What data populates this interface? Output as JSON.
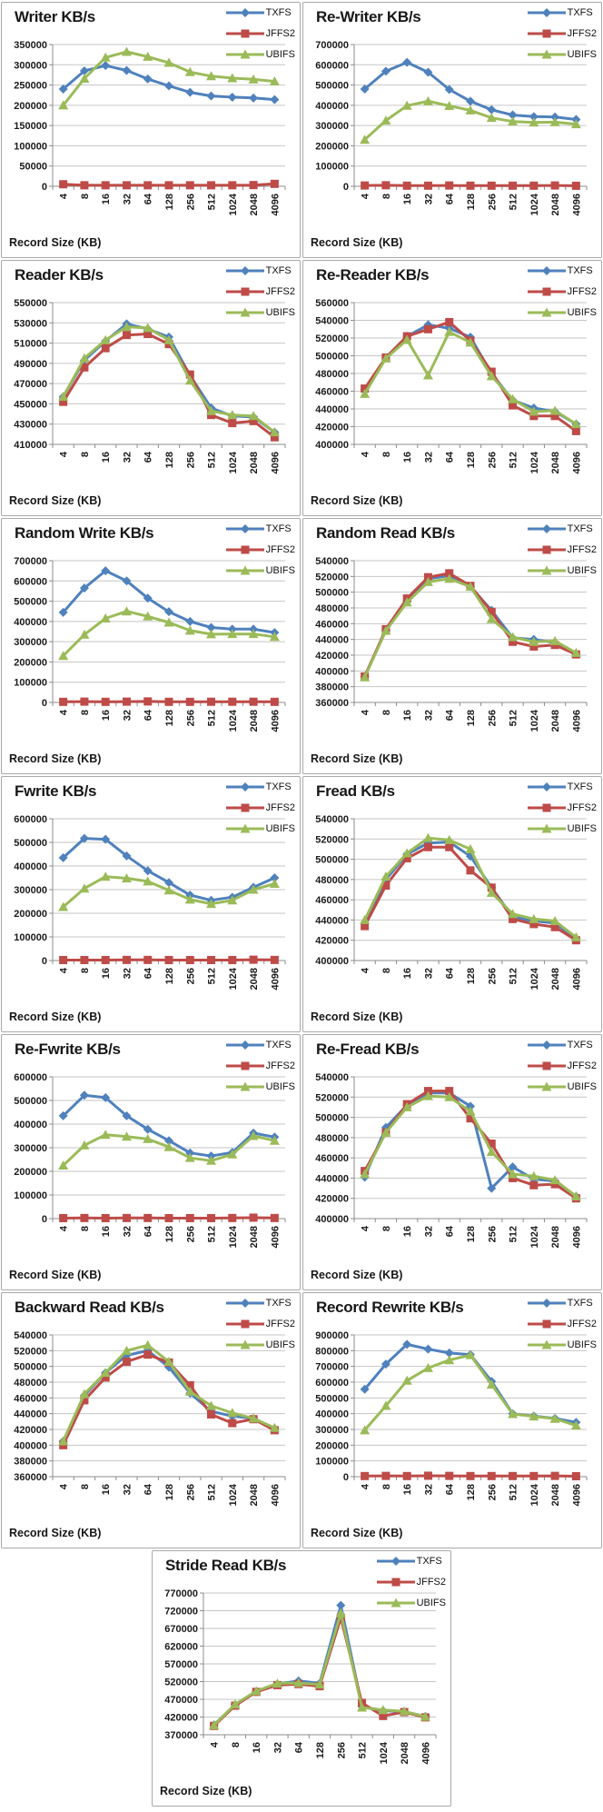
{
  "page": {
    "x_axis_label": "Record Size (KB)"
  },
  "series_style": [
    {
      "name": "TXFS",
      "color": "#4F81BD",
      "marker": "diamond"
    },
    {
      "name": "JFFS2",
      "color": "#BE4B48",
      "marker": "square"
    },
    {
      "name": "UBIFS",
      "color": "#9BBB59",
      "marker": "triangle"
    }
  ],
  "chart_data": [
    {
      "type": "line",
      "title": "Writer KB/s",
      "xlabel": "Record Size (KB)",
      "categories": [
        4,
        8,
        16,
        32,
        64,
        128,
        256,
        512,
        1024,
        2048,
        4096
      ],
      "ylim": [
        0,
        350000
      ],
      "ystep": 50000,
      "grid": true,
      "legend_position": "top-right",
      "series": [
        {
          "name": "TXFS",
          "values": [
            240000,
            285000,
            298000,
            286000,
            265000,
            248000,
            232000,
            223000,
            220000,
            218000,
            214000
          ]
        },
        {
          "name": "JFFS2",
          "values": [
            5000,
            2500,
            2500,
            2500,
            2500,
            2500,
            2500,
            2500,
            2500,
            3000,
            6000
          ]
        },
        {
          "name": "UBIFS",
          "values": [
            200000,
            266000,
            318000,
            332000,
            320000,
            305000,
            282000,
            272000,
            267000,
            264000,
            259000
          ]
        }
      ]
    },
    {
      "type": "line",
      "title": "Re-Writer KB/s",
      "xlabel": "Record Size (KB)",
      "categories": [
        4,
        8,
        16,
        32,
        64,
        128,
        256,
        512,
        1024,
        2048,
        4096
      ],
      "ylim": [
        0,
        700000
      ],
      "ystep": 100000,
      "grid": true,
      "legend_position": "top-right",
      "series": [
        {
          "name": "TXFS",
          "values": [
            480000,
            568000,
            612000,
            563000,
            478000,
            420000,
            378000,
            352000,
            344000,
            342000,
            330000
          ]
        },
        {
          "name": "JFFS2",
          "values": [
            4000,
            5000,
            3000,
            3000,
            4000,
            3000,
            3000,
            3000,
            3000,
            4000,
            2500
          ]
        },
        {
          "name": "UBIFS",
          "values": [
            230000,
            325000,
            398000,
            420000,
            397000,
            375000,
            338000,
            320000,
            315000,
            317000,
            307000
          ]
        }
      ]
    },
    {
      "type": "line",
      "title": "Reader KB/s",
      "xlabel": "Record Size (KB)",
      "categories": [
        4,
        8,
        16,
        32,
        64,
        128,
        256,
        512,
        1024,
        2048,
        4096
      ],
      "ylim": [
        410000,
        550000
      ],
      "ystep": 20000,
      "grid": true,
      "legend_position": "top-right",
      "series": [
        {
          "name": "TXFS",
          "values": [
            457000,
            493000,
            512000,
            529000,
            524000,
            516000,
            478000,
            446000,
            438000,
            437000,
            422000
          ]
        },
        {
          "name": "JFFS2",
          "values": [
            452000,
            486000,
            505000,
            518000,
            519000,
            509000,
            479000,
            439000,
            431000,
            433000,
            417000
          ]
        },
        {
          "name": "UBIFS",
          "values": [
            457000,
            495000,
            513000,
            526000,
            525000,
            513000,
            473000,
            443000,
            439000,
            438000,
            422000
          ]
        }
      ]
    },
    {
      "type": "line",
      "title": "Re-Reader KB/s",
      "xlabel": "Record Size (KB)",
      "categories": [
        4,
        8,
        16,
        32,
        64,
        128,
        256,
        512,
        1024,
        2048,
        4096
      ],
      "ylim": [
        400000,
        560000
      ],
      "ystep": 20000,
      "grid": true,
      "legend_position": "top-right",
      "series": [
        {
          "name": "TXFS",
          "values": [
            462000,
            498000,
            522000,
            535000,
            531000,
            521000,
            480000,
            450000,
            441000,
            437000,
            423000
          ]
        },
        {
          "name": "JFFS2",
          "values": [
            463000,
            498000,
            522000,
            530000,
            538000,
            517000,
            482000,
            444000,
            432000,
            432000,
            415000
          ]
        },
        {
          "name": "UBIFS",
          "values": [
            457000,
            497000,
            518000,
            478000,
            527000,
            515000,
            477000,
            451000,
            437000,
            438000,
            423000
          ]
        }
      ]
    },
    {
      "type": "line",
      "title": "Random Write KB/s",
      "xlabel": "Record Size (KB)",
      "categories": [
        4,
        8,
        16,
        32,
        64,
        128,
        256,
        512,
        1024,
        2048,
        4096
      ],
      "ylim": [
        0,
        700000
      ],
      "ystep": 100000,
      "grid": true,
      "legend_position": "top-right",
      "series": [
        {
          "name": "TXFS",
          "values": [
            445000,
            565000,
            650000,
            600000,
            515000,
            448000,
            400000,
            370000,
            362000,
            362000,
            345000
          ]
        },
        {
          "name": "JFFS2",
          "values": [
            3000,
            4000,
            3000,
            4000,
            5000,
            3000,
            3000,
            3500,
            3500,
            3500,
            3000
          ]
        },
        {
          "name": "UBIFS",
          "values": [
            230000,
            335000,
            415000,
            450000,
            425000,
            395000,
            355000,
            337000,
            338000,
            338000,
            324000
          ]
        }
      ]
    },
    {
      "type": "line",
      "title": "Random Read KB/s",
      "xlabel": "Record Size (KB)",
      "categories": [
        4,
        8,
        16,
        32,
        64,
        128,
        256,
        512,
        1024,
        2048,
        4096
      ],
      "ylim": [
        360000,
        540000
      ],
      "ystep": 20000,
      "grid": true,
      "legend_position": "top-right",
      "series": [
        {
          "name": "TXFS",
          "values": [
            393000,
            452000,
            489000,
            517000,
            521000,
            507000,
            477000,
            442000,
            440000,
            436000,
            422000
          ]
        },
        {
          "name": "JFFS2",
          "values": [
            393000,
            453000,
            492000,
            519000,
            524000,
            508000,
            475000,
            437000,
            431000,
            433000,
            421000
          ]
        },
        {
          "name": "UBIFS",
          "values": [
            392000,
            451000,
            487000,
            513000,
            517000,
            507000,
            466000,
            443000,
            437000,
            438000,
            423000
          ]
        }
      ]
    },
    {
      "type": "line",
      "title": "Fwrite KB/s",
      "xlabel": "Record Size (KB)",
      "categories": [
        4,
        8,
        16,
        32,
        64,
        128,
        256,
        512,
        1024,
        2048,
        4096
      ],
      "ylim": [
        0,
        600000
      ],
      "ystep": 100000,
      "grid": true,
      "legend_position": "top-right",
      "series": [
        {
          "name": "TXFS",
          "values": [
            435000,
            517000,
            513000,
            443000,
            380000,
            330000,
            277000,
            255000,
            268000,
            310000,
            350000
          ]
        },
        {
          "name": "JFFS2",
          "values": [
            2000,
            2000,
            2000,
            2500,
            2500,
            2000,
            2000,
            2000,
            2000,
            3500,
            2500
          ]
        },
        {
          "name": "UBIFS",
          "values": [
            227000,
            305000,
            355000,
            348000,
            335000,
            297000,
            258000,
            240000,
            255000,
            300000,
            325000
          ]
        }
      ]
    },
    {
      "type": "line",
      "title": "Fread KB/s",
      "xlabel": "Record Size (KB)",
      "categories": [
        4,
        8,
        16,
        32,
        64,
        128,
        256,
        512,
        1024,
        2048,
        4096
      ],
      "ylim": [
        400000,
        540000
      ],
      "ystep": 20000,
      "grid": true,
      "legend_position": "top-right",
      "series": [
        {
          "name": "TXFS",
          "values": [
            437000,
            480000,
            505000,
            516000,
            517000,
            503000,
            472000,
            443000,
            439000,
            437000,
            422000
          ]
        },
        {
          "name": "JFFS2",
          "values": [
            434000,
            474000,
            501000,
            512000,
            512000,
            489000,
            472000,
            441000,
            436000,
            433000,
            420000
          ]
        },
        {
          "name": "UBIFS",
          "values": [
            440000,
            483000,
            506000,
            521000,
            519000,
            510000,
            467000,
            446000,
            441000,
            439000,
            423000
          ]
        }
      ]
    },
    {
      "type": "line",
      "title": "Re-Fwrite KB/s",
      "xlabel": "Record Size (KB)",
      "categories": [
        4,
        8,
        16,
        32,
        64,
        128,
        256,
        512,
        1024,
        2048,
        4096
      ],
      "ylim": [
        0,
        600000
      ],
      "ystep": 100000,
      "grid": true,
      "legend_position": "top-right",
      "series": [
        {
          "name": "TXFS",
          "values": [
            435000,
            522000,
            512000,
            435000,
            378000,
            330000,
            278000,
            265000,
            280000,
            362000,
            345000
          ]
        },
        {
          "name": "JFFS2",
          "values": [
            2000,
            2500,
            2000,
            2500,
            2500,
            2000,
            2000,
            2000,
            2500,
            4000,
            2500
          ]
        },
        {
          "name": "UBIFS",
          "values": [
            225000,
            310000,
            355000,
            347000,
            337000,
            303000,
            257000,
            245000,
            272000,
            350000,
            330000
          ]
        }
      ]
    },
    {
      "type": "line",
      "title": "Re-Fread KB/s",
      "xlabel": "Record Size (KB)",
      "categories": [
        4,
        8,
        16,
        32,
        64,
        128,
        256,
        512,
        1024,
        2048,
        4096
      ],
      "ylim": [
        400000,
        540000
      ],
      "ystep": 20000,
      "grid": true,
      "legend_position": "top-right",
      "series": [
        {
          "name": "TXFS",
          "values": [
            441000,
            490000,
            512000,
            524000,
            524000,
            511000,
            430000,
            451000,
            439000,
            437000,
            422000
          ]
        },
        {
          "name": "JFFS2",
          "values": [
            447000,
            485000,
            513000,
            526000,
            526000,
            499000,
            474000,
            440000,
            433000,
            434000,
            420000
          ]
        },
        {
          "name": "UBIFS",
          "values": [
            444000,
            485000,
            510000,
            521000,
            520000,
            506000,
            466000,
            444000,
            442000,
            438000,
            422000
          ]
        }
      ]
    },
    {
      "type": "line",
      "title": "Backward Read KB/s",
      "xlabel": "Record Size (KB)",
      "categories": [
        4,
        8,
        16,
        32,
        64,
        128,
        256,
        512,
        1024,
        2048,
        4096
      ],
      "ylim": [
        360000,
        540000
      ],
      "ystep": 20000,
      "grid": true,
      "legend_position": "top-right",
      "series": [
        {
          "name": "TXFS",
          "values": [
            405000,
            463000,
            492000,
            514000,
            520000,
            499000,
            466000,
            443000,
            437000,
            434000,
            421000
          ]
        },
        {
          "name": "JFFS2",
          "values": [
            400000,
            457000,
            486000,
            506000,
            515000,
            505000,
            476000,
            439000,
            428000,
            433000,
            419000
          ]
        },
        {
          "name": "UBIFS",
          "values": [
            405000,
            465000,
            492000,
            520000,
            527000,
            506000,
            468000,
            450000,
            441000,
            434000,
            422000
          ]
        }
      ]
    },
    {
      "type": "line",
      "title": "Record Rewrite KB/s",
      "xlabel": "Record Size (KB)",
      "categories": [
        4,
        8,
        16,
        32,
        64,
        128,
        256,
        512,
        1024,
        2048,
        4096
      ],
      "ylim": [
        0,
        900000
      ],
      "ystep": 100000,
      "grid": true,
      "legend_position": "top-right",
      "series": [
        {
          "name": "TXFS",
          "values": [
            555000,
            715000,
            840000,
            810000,
            785000,
            775000,
            605000,
            400000,
            385000,
            370000,
            345000
          ]
        },
        {
          "name": "JFFS2",
          "values": [
            4000,
            5000,
            4000,
            6000,
            5000,
            4000,
            4000,
            4000,
            4000,
            5000,
            3000
          ]
        },
        {
          "name": "UBIFS",
          "values": [
            295000,
            450000,
            610000,
            690000,
            740000,
            772000,
            585000,
            398000,
            383000,
            368000,
            325000
          ]
        }
      ]
    },
    {
      "type": "line",
      "title": "Stride Read KB/s",
      "xlabel": "Record Size (KB)",
      "categories": [
        4,
        8,
        16,
        32,
        64,
        128,
        256,
        512,
        1024,
        2048,
        4096
      ],
      "ylim": [
        370000,
        770000
      ],
      "ystep": 50000,
      "grid": true,
      "legend_position": "top-right",
      "series": [
        {
          "name": "TXFS",
          "values": [
            398000,
            455000,
            492000,
            513000,
            522000,
            515000,
            735000,
            450000,
            438000,
            435000,
            422000
          ]
        },
        {
          "name": "JFFS2",
          "values": [
            395000,
            452000,
            491000,
            510000,
            513000,
            507000,
            700000,
            460000,
            423000,
            434000,
            419000
          ]
        },
        {
          "name": "UBIFS",
          "values": [
            397000,
            456000,
            493000,
            515000,
            516000,
            512000,
            713000,
            447000,
            440000,
            436000,
            421000
          ]
        }
      ]
    }
  ]
}
